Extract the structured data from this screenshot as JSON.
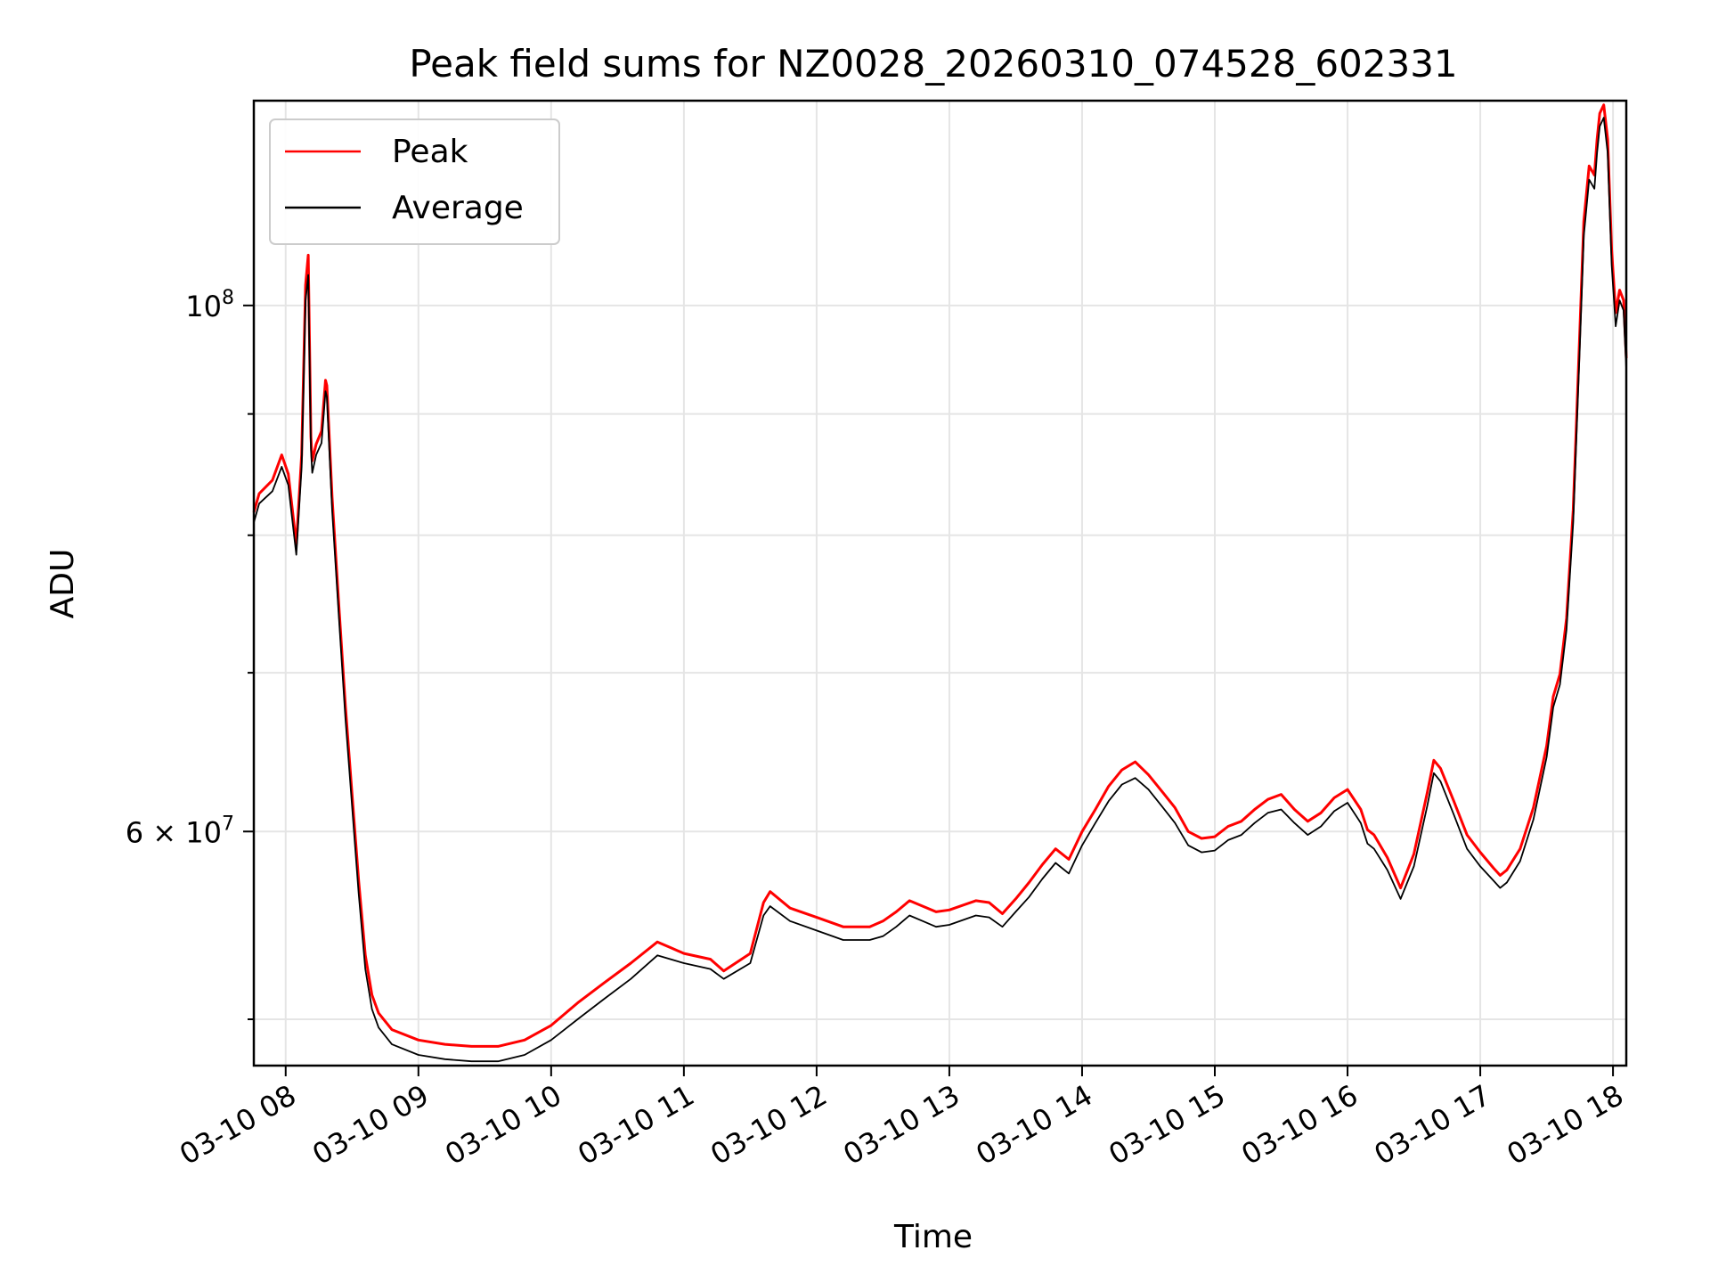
{
  "chart_data": {
    "type": "line",
    "title": "Peak field sums for NZ0028_20260310_074528_602331",
    "xlabel": "Time",
    "ylabel": "ADU",
    "yscale": "log",
    "xlim": [
      7.76,
      18.1
    ],
    "ylim": [
      47800000,
      122000000
    ],
    "grid": true,
    "legend_position": "top-left",
    "x_ticks": [
      {
        "value": 8,
        "label": "03-10 08"
      },
      {
        "value": 9,
        "label": "03-10 09"
      },
      {
        "value": 10,
        "label": "03-10 10"
      },
      {
        "value": 11,
        "label": "03-10 11"
      },
      {
        "value": 12,
        "label": "03-10 12"
      },
      {
        "value": 13,
        "label": "03-10 13"
      },
      {
        "value": 14,
        "label": "03-10 14"
      },
      {
        "value": 15,
        "label": "03-10 15"
      },
      {
        "value": 16,
        "label": "03-10 16"
      },
      {
        "value": 17,
        "label": "03-10 17"
      },
      {
        "value": 18,
        "label": "03-10 18"
      }
    ],
    "y_major_ticks": [
      {
        "value": 100000000,
        "base": "10",
        "exp": "8"
      },
      {
        "value": 60000000,
        "base": "6 × 10",
        "exp": "7"
      }
    ],
    "y_minor_ticks": [
      50000000,
      70000000,
      80000000,
      90000000
    ],
    "series": [
      {
        "name": "Average",
        "color": "#000000",
        "x": [
          7.76,
          7.8,
          7.9,
          7.97,
          8.02,
          8.08,
          8.12,
          8.15,
          8.17,
          8.19,
          8.2,
          8.23,
          8.27,
          8.3,
          8.31,
          8.35,
          8.4,
          8.45,
          8.5,
          8.55,
          8.6,
          8.65,
          8.7,
          8.8,
          9.0,
          9.2,
          9.4,
          9.6,
          9.8,
          10.0,
          10.2,
          10.4,
          10.6,
          10.8,
          10.9,
          11.0,
          11.2,
          11.3,
          11.5,
          11.6,
          11.65,
          11.8,
          12.0,
          12.2,
          12.4,
          12.5,
          12.6,
          12.7,
          12.8,
          12.9,
          13.0,
          13.2,
          13.3,
          13.4,
          13.5,
          13.6,
          13.7,
          13.8,
          13.9,
          14.0,
          14.1,
          14.2,
          14.3,
          14.4,
          14.5,
          14.6,
          14.7,
          14.8,
          14.9,
          15.0,
          15.1,
          15.2,
          15.3,
          15.4,
          15.5,
          15.6,
          15.7,
          15.8,
          15.9,
          16.0,
          16.1,
          16.15,
          16.2,
          16.3,
          16.4,
          16.5,
          16.6,
          16.65,
          16.7,
          16.8,
          16.9,
          17.0,
          17.1,
          17.15,
          17.2,
          17.3,
          17.4,
          17.5,
          17.55,
          17.6,
          17.65,
          17.7,
          17.75,
          17.78,
          17.82,
          17.86,
          17.87,
          17.88,
          17.9,
          17.93,
          17.96,
          17.99,
          18.02,
          18.05,
          18.08,
          18.1
        ],
        "values": [
          81000000,
          82500000,
          83500000,
          85500000,
          84000000,
          78500000,
          85500000,
          100500000,
          103000000,
          87000000,
          85000000,
          86500000,
          87500000,
          92000000,
          91500000,
          82000000,
          74000000,
          67000000,
          61500000,
          56500000,
          52500000,
          50500000,
          49600000,
          48800000,
          48300000,
          48100000,
          48000000,
          48000000,
          48300000,
          49000000,
          50000000,
          51000000,
          52000000,
          53200000,
          53000000,
          52800000,
          52500000,
          52000000,
          52800000,
          55300000,
          55800000,
          55000000,
          54500000,
          54000000,
          54000000,
          54200000,
          54700000,
          55300000,
          55000000,
          54700000,
          54800000,
          55300000,
          55200000,
          54700000,
          55500000,
          56300000,
          57300000,
          58200000,
          57600000,
          59200000,
          60500000,
          61800000,
          62800000,
          63200000,
          62500000,
          61500000,
          60500000,
          59200000,
          58800000,
          58900000,
          59500000,
          59800000,
          60500000,
          61100000,
          61300000,
          60500000,
          59800000,
          60300000,
          61200000,
          61700000,
          60500000,
          59300000,
          59000000,
          57800000,
          56200000,
          58000000,
          61500000,
          63500000,
          63000000,
          61000000,
          59000000,
          58000000,
          57200000,
          56800000,
          57100000,
          58300000,
          60700000,
          64500000,
          67700000,
          69200000,
          73000000,
          81000000,
          96000000,
          107000000,
          113000000,
          112000000,
          114000000,
          116000000,
          119000000,
          120000000,
          116000000,
          104000000,
          98000000,
          100500000,
          99500000,
          94000000
        ]
      },
      {
        "name": "Peak",
        "color": "#ff0000",
        "x": [
          7.76,
          7.8,
          7.9,
          7.97,
          8.02,
          8.08,
          8.12,
          8.15,
          8.17,
          8.19,
          8.2,
          8.23,
          8.27,
          8.3,
          8.31,
          8.35,
          8.4,
          8.45,
          8.5,
          8.55,
          8.6,
          8.65,
          8.7,
          8.8,
          9.0,
          9.2,
          9.4,
          9.6,
          9.8,
          10.0,
          10.2,
          10.4,
          10.6,
          10.8,
          10.9,
          11.0,
          11.2,
          11.3,
          11.5,
          11.6,
          11.65,
          11.8,
          12.0,
          12.2,
          12.4,
          12.5,
          12.6,
          12.7,
          12.8,
          12.9,
          13.0,
          13.2,
          13.3,
          13.4,
          13.5,
          13.6,
          13.7,
          13.8,
          13.9,
          14.0,
          14.1,
          14.2,
          14.3,
          14.4,
          14.5,
          14.6,
          14.7,
          14.8,
          14.9,
          15.0,
          15.1,
          15.2,
          15.3,
          15.4,
          15.5,
          15.6,
          15.7,
          15.8,
          15.9,
          16.0,
          16.1,
          16.15,
          16.2,
          16.3,
          16.4,
          16.5,
          16.6,
          16.65,
          16.7,
          16.8,
          16.9,
          17.0,
          17.1,
          17.15,
          17.2,
          17.3,
          17.4,
          17.5,
          17.55,
          17.6,
          17.65,
          17.7,
          17.75,
          17.78,
          17.82,
          17.86,
          17.87,
          17.88,
          17.9,
          17.93,
          17.96,
          17.99,
          18.02,
          18.05,
          18.08,
          18.1
        ],
        "values": [
          81800000,
          83300000,
          84400000,
          86500000,
          84900000,
          79300000,
          86500000,
          102000000,
          105000000,
          88000000,
          86000000,
          87400000,
          88500000,
          93000000,
          92500000,
          83000000,
          74800000,
          67800000,
          62200000,
          57200000,
          53200000,
          51200000,
          50300000,
          49500000,
          49000000,
          48800000,
          48700000,
          48700000,
          49000000,
          49700000,
          50800000,
          51800000,
          52800000,
          53900000,
          53600000,
          53300000,
          53000000,
          52400000,
          53300000,
          56000000,
          56600000,
          55700000,
          55200000,
          54700000,
          54700000,
          55000000,
          55500000,
          56100000,
          55800000,
          55500000,
          55600000,
          56100000,
          56000000,
          55400000,
          56200000,
          57100000,
          58100000,
          59000000,
          58400000,
          60000000,
          61300000,
          62700000,
          63700000,
          64200000,
          63400000,
          62400000,
          61400000,
          60000000,
          59600000,
          59700000,
          60300000,
          60600000,
          61300000,
          61900000,
          62200000,
          61300000,
          60600000,
          61100000,
          62000000,
          62500000,
          61300000,
          60100000,
          59800000,
          58500000,
          56800000,
          58700000,
          62300000,
          64300000,
          63800000,
          61800000,
          59800000,
          58800000,
          57900000,
          57500000,
          57800000,
          59000000,
          61400000,
          65200000,
          68400000,
          69900000,
          73800000,
          82000000,
          97500000,
          108500000,
          114500000,
          113500000,
          115500000,
          117500000,
          120500000,
          121500000,
          117500000,
          105500000,
          99300000,
          101500000,
          100500000,
          95000000
        ]
      }
    ]
  }
}
